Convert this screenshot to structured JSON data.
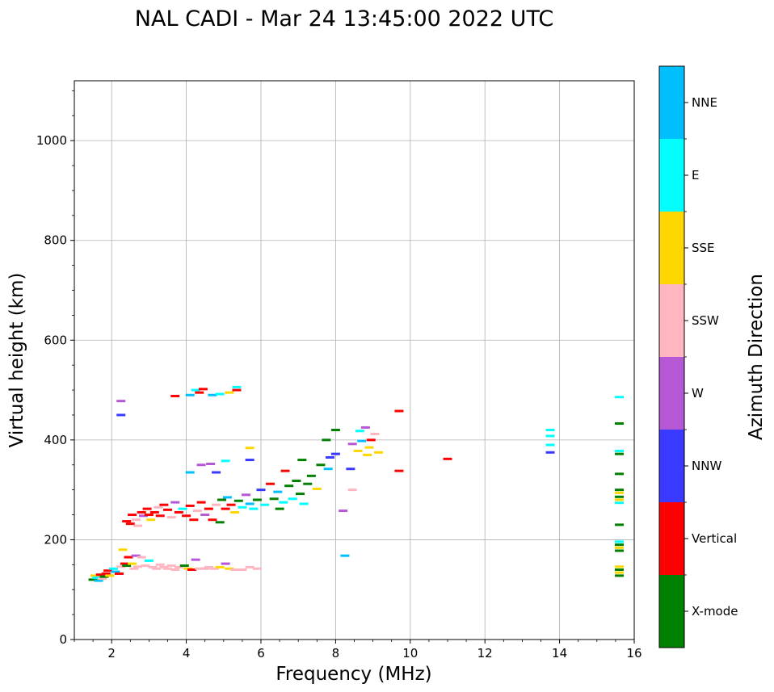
{
  "chart_data": {
    "type": "scatter",
    "title": "NAL CADI - Mar 24 13:45:00 2022 UTC",
    "xlabel": "Frequency (MHz)",
    "ylabel": "Virtual height (km)",
    "xlim": [
      1,
      16
    ],
    "ylim": [
      0,
      1120
    ],
    "xticks": [
      2,
      4,
      6,
      8,
      10,
      12,
      14,
      16
    ],
    "yticks": [
      0,
      200,
      400,
      600,
      800,
      1000
    ],
    "grid": true,
    "colorbar": {
      "label": "Azimuth Direction",
      "categories": [
        {
          "name": "X-mode",
          "color": "#008000"
        },
        {
          "name": "Vertical",
          "color": "#ff0000"
        },
        {
          "name": "NNW",
          "color": "#3939ff"
        },
        {
          "name": "W",
          "color": "#b657d6"
        },
        {
          "name": "SSW",
          "color": "#ffb6c1"
        },
        {
          "name": "SSE",
          "color": "#ffd700"
        },
        {
          "name": "E",
          "color": "#00ffff"
        },
        {
          "name": "NNE",
          "color": "#00bfff"
        }
      ]
    },
    "points": [
      {
        "x": 1.5,
        "y": 120,
        "c": "X-mode"
      },
      {
        "x": 1.55,
        "y": 128,
        "c": "SSE"
      },
      {
        "x": 1.6,
        "y": 124,
        "c": "E"
      },
      {
        "x": 1.65,
        "y": 118,
        "c": "NNE"
      },
      {
        "x": 1.7,
        "y": 130,
        "c": "Vertical"
      },
      {
        "x": 1.75,
        "y": 122,
        "c": "SSW"
      },
      {
        "x": 1.8,
        "y": 126,
        "c": "X-mode"
      },
      {
        "x": 1.85,
        "y": 132,
        "c": "Vertical"
      },
      {
        "x": 1.9,
        "y": 138,
        "c": "Vertical"
      },
      {
        "x": 1.95,
        "y": 128,
        "c": "SSE"
      },
      {
        "x": 2.05,
        "y": 142,
        "c": "E"
      },
      {
        "x": 2.1,
        "y": 136,
        "c": "NNE"
      },
      {
        "x": 2.2,
        "y": 132,
        "c": "Vertical"
      },
      {
        "x": 2.25,
        "y": 146,
        "c": "SSW"
      },
      {
        "x": 2.3,
        "y": 180,
        "c": "SSE"
      },
      {
        "x": 2.35,
        "y": 152,
        "c": "Vertical"
      },
      {
        "x": 2.4,
        "y": 148,
        "c": "X-mode"
      },
      {
        "x": 2.45,
        "y": 165,
        "c": "Vertical"
      },
      {
        "x": 2.55,
        "y": 152,
        "c": "SSE"
      },
      {
        "x": 2.6,
        "y": 142,
        "c": "SSW"
      },
      {
        "x": 2.65,
        "y": 168,
        "c": "W"
      },
      {
        "x": 2.7,
        "y": 146,
        "c": "SSW"
      },
      {
        "x": 2.8,
        "y": 165,
        "c": "SSW"
      },
      {
        "x": 2.9,
        "y": 148,
        "c": "SSW"
      },
      {
        "x": 3.0,
        "y": 158,
        "c": "E"
      },
      {
        "x": 3.1,
        "y": 145,
        "c": "SSW"
      },
      {
        "x": 3.2,
        "y": 142,
        "c": "SSW"
      },
      {
        "x": 3.3,
        "y": 150,
        "c": "SSW"
      },
      {
        "x": 3.4,
        "y": 145,
        "c": "SSW"
      },
      {
        "x": 3.5,
        "y": 142,
        "c": "SSW"
      },
      {
        "x": 3.6,
        "y": 148,
        "c": "SSW"
      },
      {
        "x": 3.7,
        "y": 140,
        "c": "SSW"
      },
      {
        "x": 3.8,
        "y": 145,
        "c": "SSW"
      },
      {
        "x": 3.95,
        "y": 148,
        "c": "X-mode"
      },
      {
        "x": 4.05,
        "y": 142,
        "c": "SSE"
      },
      {
        "x": 4.15,
        "y": 140,
        "c": "Vertical"
      },
      {
        "x": 4.25,
        "y": 160,
        "c": "W"
      },
      {
        "x": 4.35,
        "y": 142,
        "c": "SSW"
      },
      {
        "x": 4.5,
        "y": 142,
        "c": "SSW"
      },
      {
        "x": 4.6,
        "y": 145,
        "c": "SSW"
      },
      {
        "x": 4.75,
        "y": 142,
        "c": "SSW"
      },
      {
        "x": 4.9,
        "y": 145,
        "c": "SSE"
      },
      {
        "x": 5.05,
        "y": 152,
        "c": "W"
      },
      {
        "x": 5.15,
        "y": 142,
        "c": "SSE"
      },
      {
        "x": 5.3,
        "y": 140,
        "c": "SSW"
      },
      {
        "x": 5.5,
        "y": 140,
        "c": "SSW"
      },
      {
        "x": 5.7,
        "y": 145,
        "c": "SSW"
      },
      {
        "x": 5.9,
        "y": 142,
        "c": "SSW"
      },
      {
        "x": 2.4,
        "y": 237,
        "c": "Vertical"
      },
      {
        "x": 2.5,
        "y": 232,
        "c": "Vertical"
      },
      {
        "x": 2.55,
        "y": 250,
        "c": "Vertical"
      },
      {
        "x": 2.65,
        "y": 240,
        "c": "SSW"
      },
      {
        "x": 2.7,
        "y": 228,
        "c": "SSW"
      },
      {
        "x": 2.8,
        "y": 255,
        "c": "Vertical"
      },
      {
        "x": 2.85,
        "y": 248,
        "c": "W"
      },
      {
        "x": 2.95,
        "y": 262,
        "c": "Vertical"
      },
      {
        "x": 3.0,
        "y": 250,
        "c": "Vertical"
      },
      {
        "x": 3.05,
        "y": 240,
        "c": "SSE"
      },
      {
        "x": 3.15,
        "y": 255,
        "c": "Vertical"
      },
      {
        "x": 3.25,
        "y": 265,
        "c": "SSW"
      },
      {
        "x": 3.3,
        "y": 248,
        "c": "Vertical"
      },
      {
        "x": 3.4,
        "y": 270,
        "c": "Vertical"
      },
      {
        "x": 3.5,
        "y": 260,
        "c": "Vertical"
      },
      {
        "x": 3.6,
        "y": 245,
        "c": "SSW"
      },
      {
        "x": 3.7,
        "y": 275,
        "c": "W"
      },
      {
        "x": 3.8,
        "y": 255,
        "c": "Vertical"
      },
      {
        "x": 3.9,
        "y": 262,
        "c": "E"
      },
      {
        "x": 4.0,
        "y": 248,
        "c": "Vertical"
      },
      {
        "x": 4.1,
        "y": 268,
        "c": "Vertical"
      },
      {
        "x": 4.2,
        "y": 240,
        "c": "Vertical"
      },
      {
        "x": 4.3,
        "y": 258,
        "c": "SSW"
      },
      {
        "x": 4.4,
        "y": 275,
        "c": "Vertical"
      },
      {
        "x": 4.5,
        "y": 250,
        "c": "W"
      },
      {
        "x": 4.6,
        "y": 262,
        "c": "Vertical"
      },
      {
        "x": 4.7,
        "y": 240,
        "c": "Vertical"
      },
      {
        "x": 4.8,
        "y": 270,
        "c": "SSW"
      },
      {
        "x": 4.9,
        "y": 235,
        "c": "X-mode"
      },
      {
        "x": 4.95,
        "y": 280,
        "c": "X-mode"
      },
      {
        "x": 5.05,
        "y": 262,
        "c": "Vertical"
      },
      {
        "x": 5.1,
        "y": 285,
        "c": "NNE"
      },
      {
        "x": 5.2,
        "y": 270,
        "c": "Vertical"
      },
      {
        "x": 5.3,
        "y": 255,
        "c": "SSE"
      },
      {
        "x": 5.4,
        "y": 278,
        "c": "X-mode"
      },
      {
        "x": 5.5,
        "y": 265,
        "c": "E"
      },
      {
        "x": 5.6,
        "y": 290,
        "c": "W"
      },
      {
        "x": 5.7,
        "y": 272,
        "c": "NNE"
      },
      {
        "x": 5.8,
        "y": 262,
        "c": "E"
      },
      {
        "x": 5.9,
        "y": 280,
        "c": "X-mode"
      },
      {
        "x": 6.0,
        "y": 300,
        "c": "NNW"
      },
      {
        "x": 6.1,
        "y": 270,
        "c": "E"
      },
      {
        "x": 6.25,
        "y": 312,
        "c": "Vertical"
      },
      {
        "x": 6.35,
        "y": 282,
        "c": "X-mode"
      },
      {
        "x": 6.45,
        "y": 296,
        "c": "NNE"
      },
      {
        "x": 6.5,
        "y": 262,
        "c": "X-mode"
      },
      {
        "x": 6.6,
        "y": 275,
        "c": "E"
      },
      {
        "x": 6.65,
        "y": 338,
        "c": "Vertical"
      },
      {
        "x": 6.75,
        "y": 308,
        "c": "X-mode"
      },
      {
        "x": 6.85,
        "y": 282,
        "c": "E"
      },
      {
        "x": 6.95,
        "y": 318,
        "c": "X-mode"
      },
      {
        "x": 7.05,
        "y": 292,
        "c": "X-mode"
      },
      {
        "x": 7.1,
        "y": 360,
        "c": "X-mode"
      },
      {
        "x": 7.15,
        "y": 272,
        "c": "E"
      },
      {
        "x": 7.25,
        "y": 312,
        "c": "X-mode"
      },
      {
        "x": 7.35,
        "y": 328,
        "c": "X-mode"
      },
      {
        "x": 7.5,
        "y": 302,
        "c": "SSE"
      },
      {
        "x": 7.6,
        "y": 350,
        "c": "X-mode"
      },
      {
        "x": 7.75,
        "y": 400,
        "c": "X-mode"
      },
      {
        "x": 7.8,
        "y": 342,
        "c": "NNE"
      },
      {
        "x": 7.85,
        "y": 365,
        "c": "NNW"
      },
      {
        "x": 8.0,
        "y": 420,
        "c": "X-mode"
      },
      {
        "x": 8.0,
        "y": 372,
        "c": "NNW"
      },
      {
        "x": 8.2,
        "y": 258,
        "c": "W"
      },
      {
        "x": 8.25,
        "y": 168,
        "c": "NNE"
      },
      {
        "x": 8.4,
        "y": 342,
        "c": "NNW"
      },
      {
        "x": 8.45,
        "y": 300,
        "c": "SSW"
      },
      {
        "x": 8.45,
        "y": 392,
        "c": "W"
      },
      {
        "x": 8.6,
        "y": 378,
        "c": "SSE"
      },
      {
        "x": 8.65,
        "y": 418,
        "c": "E"
      },
      {
        "x": 8.7,
        "y": 398,
        "c": "NNE"
      },
      {
        "x": 8.8,
        "y": 425,
        "c": "W"
      },
      {
        "x": 8.85,
        "y": 370,
        "c": "SSE"
      },
      {
        "x": 8.9,
        "y": 385,
        "c": "SSE"
      },
      {
        "x": 8.95,
        "y": 400,
        "c": "Vertical"
      },
      {
        "x": 9.05,
        "y": 412,
        "c": "SSW"
      },
      {
        "x": 9.15,
        "y": 375,
        "c": "SSE"
      },
      {
        "x": 9.7,
        "y": 458,
        "c": "Vertical"
      },
      {
        "x": 9.7,
        "y": 338,
        "c": "Vertical"
      },
      {
        "x": 11.0,
        "y": 362,
        "c": "Vertical"
      },
      {
        "x": 2.25,
        "y": 478,
        "c": "W"
      },
      {
        "x": 2.25,
        "y": 450,
        "c": "NNW"
      },
      {
        "x": 3.7,
        "y": 488,
        "c": "Vertical"
      },
      {
        "x": 4.1,
        "y": 490,
        "c": "NNE"
      },
      {
        "x": 4.25,
        "y": 500,
        "c": "E"
      },
      {
        "x": 4.35,
        "y": 495,
        "c": "Vertical"
      },
      {
        "x": 4.45,
        "y": 502,
        "c": "Vertical"
      },
      {
        "x": 4.7,
        "y": 490,
        "c": "NNE"
      },
      {
        "x": 4.9,
        "y": 492,
        "c": "E"
      },
      {
        "x": 5.15,
        "y": 495,
        "c": "SSE"
      },
      {
        "x": 5.35,
        "y": 500,
        "c": "Vertical"
      },
      {
        "x": 5.35,
        "y": 506,
        "c": "E"
      },
      {
        "x": 5.7,
        "y": 384,
        "c": "SSE"
      },
      {
        "x": 5.7,
        "y": 360,
        "c": "NNW"
      },
      {
        "x": 4.1,
        "y": 335,
        "c": "NNE"
      },
      {
        "x": 4.4,
        "y": 350,
        "c": "W"
      },
      {
        "x": 4.65,
        "y": 352,
        "c": "W"
      },
      {
        "x": 4.8,
        "y": 335,
        "c": "NNW"
      },
      {
        "x": 5.05,
        "y": 358,
        "c": "E"
      },
      {
        "x": 13.75,
        "y": 420,
        "c": "E"
      },
      {
        "x": 13.75,
        "y": 408,
        "c": "E"
      },
      {
        "x": 13.75,
        "y": 390,
        "c": "E"
      },
      {
        "x": 13.75,
        "y": 375,
        "c": "NNW"
      },
      {
        "x": 15.6,
        "y": 486,
        "c": "E"
      },
      {
        "x": 15.6,
        "y": 433,
        "c": "X-mode"
      },
      {
        "x": 15.6,
        "y": 378,
        "c": "E"
      },
      {
        "x": 15.6,
        "y": 372,
        "c": "X-mode"
      },
      {
        "x": 15.6,
        "y": 332,
        "c": "X-mode"
      },
      {
        "x": 15.6,
        "y": 300,
        "c": "X-mode"
      },
      {
        "x": 15.6,
        "y": 294,
        "c": "SSE"
      },
      {
        "x": 15.6,
        "y": 286,
        "c": "X-mode"
      },
      {
        "x": 15.6,
        "y": 280,
        "c": "SSE"
      },
      {
        "x": 15.6,
        "y": 274,
        "c": "E"
      },
      {
        "x": 15.6,
        "y": 230,
        "c": "X-mode"
      },
      {
        "x": 15.6,
        "y": 196,
        "c": "E"
      },
      {
        "x": 15.6,
        "y": 190,
        "c": "X-mode"
      },
      {
        "x": 15.6,
        "y": 184,
        "c": "SSE"
      },
      {
        "x": 15.6,
        "y": 178,
        "c": "X-mode"
      },
      {
        "x": 15.6,
        "y": 146,
        "c": "SSE"
      },
      {
        "x": 15.6,
        "y": 140,
        "c": "X-mode"
      },
      {
        "x": 15.6,
        "y": 134,
        "c": "SSE"
      },
      {
        "x": 15.6,
        "y": 128,
        "c": "X-mode"
      }
    ]
  }
}
